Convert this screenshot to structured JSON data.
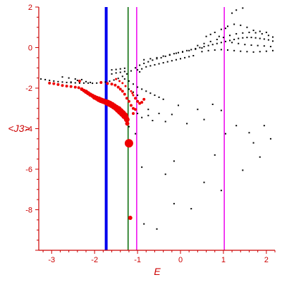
{
  "chart_data": {
    "type": "scatter",
    "title": "",
    "xlabel": "E",
    "ylabel": "<J3>",
    "xlim": [
      -3.3,
      2.2
    ],
    "ylim": [
      -10,
      2
    ],
    "xticks": [
      -3,
      -2,
      -1,
      0,
      1,
      2
    ],
    "yticks": [
      2,
      0,
      -2,
      -4,
      -6,
      -8
    ],
    "grid": false,
    "colors": {
      "axis": "#cc0000",
      "black_points": "#000000",
      "red_points": "#ee0000",
      "blue_line": "#0000ee",
      "green_line": "#006600",
      "magenta_line": "#ee00ee"
    },
    "vertical_lines": [
      {
        "x": -1.73,
        "color": "#0000ee",
        "width": 4
      },
      {
        "x": -1.22,
        "color": "#006600",
        "width": 1.5
      },
      {
        "x": -1.02,
        "color": "#ee00ee",
        "width": 1.5
      },
      {
        "x": 1.02,
        "color": "#ee00ee",
        "width": 1.5
      }
    ],
    "red_points": [
      [
        -3.05,
        -1.75
      ],
      [
        -2.95,
        -1.78
      ],
      [
        -2.85,
        -1.82
      ],
      [
        -2.75,
        -1.87
      ],
      [
        -2.65,
        -1.9
      ],
      [
        -2.55,
        -1.92
      ],
      [
        -2.45,
        -1.95
      ],
      [
        -2.37,
        -1.98
      ],
      [
        -2.3,
        -2.05
      ],
      [
        -2.25,
        -2.12
      ],
      [
        -2.2,
        -2.18
      ],
      [
        -2.15,
        -2.25
      ],
      [
        -2.1,
        -2.32
      ],
      [
        -2.05,
        -2.38
      ],
      [
        -2.0,
        -2.45
      ],
      [
        -1.95,
        -2.5
      ],
      [
        -1.9,
        -2.55
      ],
      [
        -1.85,
        -2.6
      ],
      [
        -1.8,
        -2.64
      ],
      [
        -1.75,
        -2.68
      ],
      [
        -1.7,
        -2.72
      ],
      [
        -1.65,
        -2.77
      ],
      [
        -1.6,
        -2.83
      ],
      [
        -1.55,
        -2.9
      ],
      [
        -1.5,
        -2.97
      ],
      [
        -1.45,
        -3.05
      ],
      [
        -1.4,
        -3.15
      ],
      [
        -1.35,
        -3.25
      ],
      [
        -1.3,
        -3.36
      ],
      [
        -1.27,
        -3.45
      ],
      [
        -1.25,
        -3.55
      ],
      [
        -1.24,
        -3.75
      ],
      [
        -1.2,
        -4.72
      ],
      [
        -1.17,
        -8.4
      ],
      [
        -2.35,
        -1.65
      ],
      [
        -1.85,
        -1.72
      ],
      [
        -1.7,
        -1.77
      ],
      [
        -1.6,
        -1.8
      ],
      [
        -1.52,
        -1.85
      ],
      [
        -1.45,
        -1.95
      ],
      [
        -1.4,
        -2.05
      ],
      [
        -1.35,
        -2.15
      ],
      [
        -1.3,
        -2.3
      ],
      [
        -1.25,
        -2.5
      ],
      [
        -1.2,
        -2.65
      ],
      [
        -1.15,
        -2.85
      ],
      [
        -1.1,
        -3.0
      ],
      [
        -1.5,
        -1.55
      ],
      [
        -1.42,
        -1.65
      ],
      [
        -1.35,
        -1.75
      ],
      [
        -1.28,
        -1.9
      ],
      [
        -1.15,
        -2.15
      ],
      [
        -1.12,
        -2.25
      ],
      [
        -1.1,
        -2.35
      ],
      [
        -1.05,
        -2.5
      ],
      [
        -1.0,
        -2.65
      ],
      [
        -0.95,
        -2.75
      ],
      [
        -0.9,
        -2.7
      ],
      [
        -0.85,
        -2.55
      ],
      [
        -1.1,
        -3.25
      ],
      [
        -1.05,
        -3.05
      ]
    ],
    "red_sizes": [
      2,
      2,
      2,
      2,
      2,
      2,
      2,
      2,
      2.5,
      2.5,
      3,
      3,
      3,
      3,
      3.5,
      3.5,
      4,
      4,
      4,
      4,
      4.5,
      4.5,
      4.5,
      4.5,
      4.5,
      5,
      5,
      5,
      5,
      4,
      4,
      3,
      6,
      3,
      2,
      2,
      2,
      2,
      2,
      2,
      2,
      2,
      2,
      2,
      2,
      2,
      2,
      1.5,
      1.5,
      1.5,
      1.5,
      1.5,
      1.5,
      1.5,
      2,
      2,
      2,
      2,
      2,
      2,
      2
    ],
    "black_points": [
      [
        -3.25,
        -1.55
      ],
      [
        -3.15,
        -1.58
      ],
      [
        -3.05,
        -1.62
      ],
      [
        -2.95,
        -1.65
      ],
      [
        -2.85,
        -1.68
      ],
      [
        -2.75,
        -1.7
      ],
      [
        -2.65,
        -1.72
      ],
      [
        -2.55,
        -1.73
      ],
      [
        -2.45,
        -1.74
      ],
      [
        -2.35,
        -1.75
      ],
      [
        -2.25,
        -1.75
      ],
      [
        -2.15,
        -1.75
      ],
      [
        -2.05,
        -1.76
      ],
      [
        -1.95,
        -1.75
      ],
      [
        -1.85,
        -1.73
      ],
      [
        -1.75,
        -1.7
      ],
      [
        -1.65,
        -1.66
      ],
      [
        -1.55,
        -1.6
      ],
      [
        -1.45,
        -1.52
      ],
      [
        -1.35,
        -1.42
      ],
      [
        -1.25,
        -1.3
      ],
      [
        -1.15,
        -1.15
      ],
      [
        -1.05,
        -1.0
      ],
      [
        -0.95,
        -0.87
      ],
      [
        -0.85,
        -0.78
      ],
      [
        -0.75,
        -0.7
      ],
      [
        -0.65,
        -0.62
      ],
      [
        -0.55,
        -0.55
      ],
      [
        -0.45,
        -0.5
      ],
      [
        -0.35,
        -0.43
      ],
      [
        -0.25,
        -0.37
      ],
      [
        -0.15,
        -0.3
      ],
      [
        -0.05,
        -0.25
      ],
      [
        0.05,
        -0.2
      ],
      [
        0.15,
        -0.15
      ],
      [
        0.25,
        -0.1
      ],
      [
        0.35,
        -0.05
      ],
      [
        0.45,
        0.0
      ],
      [
        0.55,
        0.05
      ],
      [
        0.65,
        0.1
      ],
      [
        0.75,
        0.15
      ],
      [
        0.85,
        0.2
      ],
      [
        0.95,
        0.25
      ],
      [
        1.05,
        0.3
      ],
      [
        1.15,
        0.35
      ],
      [
        1.25,
        0.4
      ],
      [
        1.35,
        0.45
      ],
      [
        1.45,
        0.48
      ],
      [
        1.55,
        0.5
      ],
      [
        1.65,
        0.5
      ],
      [
        1.75,
        0.48
      ],
      [
        1.85,
        0.45
      ],
      [
        1.95,
        0.42
      ],
      [
        2.05,
        0.38
      ],
      [
        2.15,
        0.32
      ],
      [
        -2.75,
        -1.45
      ],
      [
        -2.6,
        -1.5
      ],
      [
        -2.45,
        -1.55
      ],
      [
        -2.3,
        -1.58
      ],
      [
        -2.55,
        -1.7
      ],
      [
        -2.4,
        -1.62
      ],
      [
        -2.2,
        -1.68
      ],
      [
        -2.1,
        -1.72
      ],
      [
        -1.6,
        -1.3
      ],
      [
        -1.5,
        -1.25
      ],
      [
        -1.4,
        -1.22
      ],
      [
        -1.3,
        -1.18
      ],
      [
        -1.6,
        -1.1
      ],
      [
        -1.5,
        -1.08
      ],
      [
        -1.4,
        -1.05
      ],
      [
        -1.3,
        -1.02
      ],
      [
        -1.0,
        -1.1
      ],
      [
        -0.95,
        -1.2
      ],
      [
        -0.9,
        -1.05
      ],
      [
        -0.8,
        -0.95
      ],
      [
        -0.7,
        -0.9
      ],
      [
        -0.6,
        -0.85
      ],
      [
        -0.5,
        -0.8
      ],
      [
        -0.4,
        -0.75
      ],
      [
        -0.3,
        -0.7
      ],
      [
        -0.2,
        -0.65
      ],
      [
        -0.1,
        -0.6
      ],
      [
        0.0,
        -0.55
      ],
      [
        0.1,
        -0.5
      ],
      [
        0.2,
        -0.45
      ],
      [
        0.3,
        -0.4
      ],
      [
        -0.85,
        -0.6
      ],
      [
        -0.7,
        -0.55
      ],
      [
        -0.55,
        -0.5
      ],
      [
        -0.4,
        -0.42
      ],
      [
        -0.25,
        -0.35
      ],
      [
        -0.1,
        -0.28
      ],
      [
        0.05,
        -0.22
      ],
      [
        0.2,
        -0.15
      ],
      [
        0.35,
        -0.08
      ],
      [
        0.5,
        -0.02
      ],
      [
        0.4,
        0.1
      ],
      [
        0.55,
        0.2
      ],
      [
        0.7,
        0.3
      ],
      [
        0.85,
        0.4
      ],
      [
        1.0,
        0.5
      ],
      [
        1.15,
        0.6
      ],
      [
        1.3,
        0.68
      ],
      [
        1.45,
        0.72
      ],
      [
        1.6,
        0.75
      ],
      [
        1.75,
        0.73
      ],
      [
        1.9,
        0.68
      ],
      [
        2.05,
        0.6
      ],
      [
        2.15,
        0.52
      ],
      [
        0.5,
        -0.2
      ],
      [
        0.65,
        -0.15
      ],
      [
        0.8,
        -0.12
      ],
      [
        0.95,
        -0.1
      ],
      [
        1.1,
        -0.12
      ],
      [
        1.25,
        -0.15
      ],
      [
        1.4,
        -0.18
      ],
      [
        1.55,
        -0.2
      ],
      [
        1.7,
        -0.22
      ],
      [
        1.85,
        -0.2
      ],
      [
        2.0,
        -0.18
      ],
      [
        2.15,
        -0.15
      ],
      [
        0.8,
        0.75
      ],
      [
        0.95,
        0.9
      ],
      [
        1.1,
        1.05
      ],
      [
        1.25,
        1.15
      ],
      [
        1.4,
        1.1
      ],
      [
        1.55,
        1.0
      ],
      [
        1.7,
        0.85
      ],
      [
        1.85,
        0.8
      ],
      [
        2.0,
        0.75
      ],
      [
        1.3,
        1.85
      ],
      [
        1.45,
        1.95
      ],
      [
        1.2,
        1.7
      ],
      [
        0.6,
        0.55
      ],
      [
        0.7,
        0.65
      ],
      [
        0.9,
        0.55
      ],
      [
        1.05,
        0.95
      ],
      [
        1.2,
        0.25
      ],
      [
        1.35,
        0.2
      ],
      [
        1.5,
        0.15
      ],
      [
        1.65,
        0.12
      ],
      [
        1.8,
        0.1
      ],
      [
        1.95,
        0.08
      ],
      [
        2.1,
        0.05
      ],
      [
        -1.3,
        -1.55
      ],
      [
        -1.2,
        -1.65
      ],
      [
        -1.1,
        -1.8
      ],
      [
        -1.0,
        -1.95
      ],
      [
        -0.9,
        -2.05
      ],
      [
        -0.8,
        -2.15
      ],
      [
        -0.7,
        -2.25
      ],
      [
        -0.6,
        -2.35
      ],
      [
        -0.5,
        -2.45
      ],
      [
        -0.4,
        -2.55
      ],
      [
        -1.2,
        -2.05
      ],
      [
        -1.1,
        -2.2
      ],
      [
        -1.0,
        -2.35
      ],
      [
        -1.05,
        -3.05
      ],
      [
        -1.0,
        -3.25
      ],
      [
        -0.9,
        -3.45
      ],
      [
        -0.75,
        -3.35
      ],
      [
        -0.65,
        -3.6
      ],
      [
        -0.5,
        -3.25
      ],
      [
        -0.35,
        -3.65
      ],
      [
        -0.2,
        -3.3
      ],
      [
        -0.05,
        -2.85
      ],
      [
        0.15,
        -3.75
      ],
      [
        0.4,
        -3.05
      ],
      [
        0.55,
        -3.55
      ],
      [
        0.75,
        -2.8
      ],
      [
        0.95,
        -3.1
      ],
      [
        1.3,
        -3.85
      ],
      [
        1.6,
        -4.2
      ],
      [
        1.95,
        -3.85
      ],
      [
        2.1,
        -4.5
      ],
      [
        1.05,
        -4.25
      ],
      [
        0.8,
        -5.3
      ],
      [
        1.7,
        -4.7
      ],
      [
        1.85,
        -5.4
      ],
      [
        1.45,
        -6.05
      ],
      [
        0.95,
        -7.05
      ],
      [
        0.25,
        -7.95
      ],
      [
        -0.15,
        -7.7
      ],
      [
        -0.55,
        -8.95
      ],
      [
        -0.85,
        -8.7
      ],
      [
        -0.9,
        -5.9
      ],
      [
        -0.35,
        -6.25
      ],
      [
        0.55,
        -6.65
      ],
      [
        -0.15,
        -5.6
      ],
      [
        -1.05,
        -4.25
      ],
      [
        -1.2,
        -3.9
      ],
      [
        -0.75,
        -3.05
      ]
    ]
  }
}
